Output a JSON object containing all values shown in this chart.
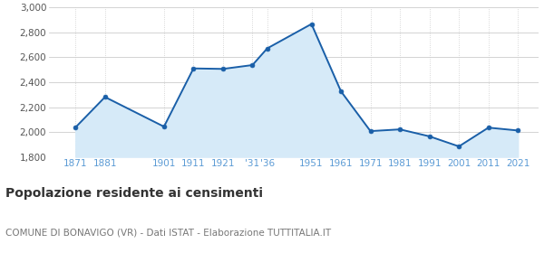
{
  "years": [
    1871,
    1881,
    1901,
    1911,
    1921,
    1931,
    1936,
    1951,
    1961,
    1971,
    1981,
    1991,
    2001,
    2011,
    2021
  ],
  "population": [
    2037,
    2281,
    2043,
    2511,
    2507,
    2538,
    2672,
    2868,
    2327,
    2007,
    2021,
    1965,
    1884,
    2035,
    2012
  ],
  "line_color": "#1a5fa8",
  "fill_color": "#d6eaf8",
  "marker_color": "#1a5fa8",
  "grid_color": "#cccccc",
  "background_color": "#ffffff",
  "title": "Popolazione residente ai censimenti",
  "subtitle": "COMUNE DI BONAVIGO (VR) - Dati ISTAT - Elaborazione TUTTITALIA.IT",
  "ylim": [
    1800,
    3000
  ],
  "yticks": [
    1800,
    2000,
    2200,
    2400,
    2600,
    2800,
    3000
  ],
  "ytick_labels": [
    "1,800",
    "2,000",
    "2,200",
    "2,400",
    "2,600",
    "2,800",
    "3,000"
  ],
  "title_fontsize": 10,
  "subtitle_fontsize": 7.5,
  "tick_fontsize": 7.5,
  "tick_color": "#5b9bd5",
  "xlim_left": 1862,
  "xlim_right": 2028
}
